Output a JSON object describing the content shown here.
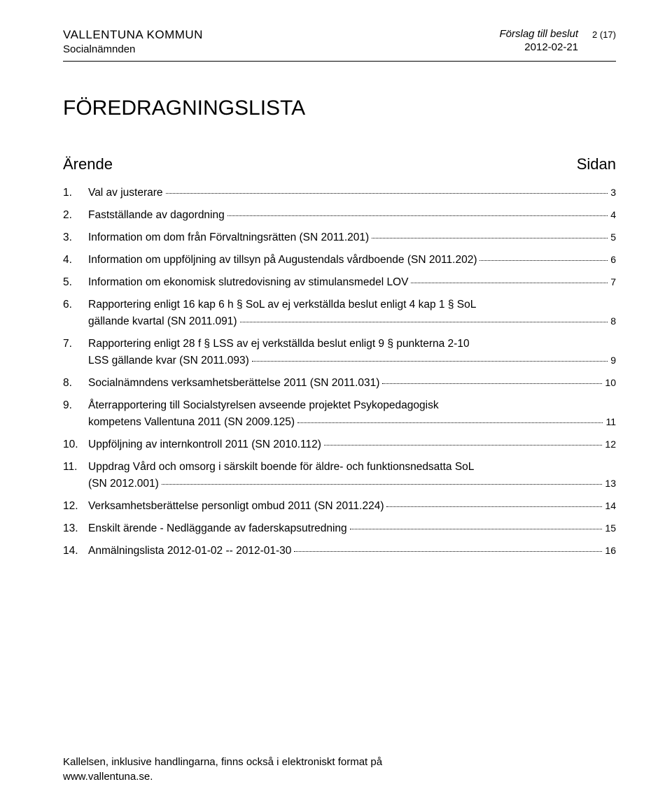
{
  "header": {
    "municipality": "VALLENTUNA KOMMUN",
    "committee": "Socialnämnden",
    "proposal": "Förslag till beslut",
    "date": "2012-02-21",
    "page_number": "2 (17)"
  },
  "title": "FÖREDRAGNINGSLISTA",
  "toc_header": {
    "left": "Ärende",
    "right": "Sidan"
  },
  "items": [
    {
      "num": "1.",
      "text": "Val av justerare",
      "page": "3",
      "multiline": false
    },
    {
      "num": "2.",
      "text": "Fastställande av dagordning",
      "page": "4",
      "multiline": false
    },
    {
      "num": "3.",
      "text": "Information om dom från Förvaltningsrätten (SN 2011.201)",
      "page": "5",
      "multiline": false
    },
    {
      "num": "4.",
      "text": "Information om uppföljning av tillsyn på Augustendals vårdboende (SN 2011.202)",
      "page": "6",
      "multiline": false
    },
    {
      "num": "5.",
      "text": "Information om ekonomisk slutredovisning av stimulansmedel LOV",
      "page": "7",
      "multiline": false
    },
    {
      "num": "6.",
      "line1": "Rapportering enligt 16 kap 6 h § SoL av ej verkställda beslut enligt 4 kap 1 § SoL",
      "line2": "gällande kvartal (SN 2011.091)",
      "page": "8",
      "multiline": true
    },
    {
      "num": "7.",
      "line1": "Rapportering enligt 28 f § LSS av ej verkställda beslut enligt 9 § punkterna 2-10",
      "line2": "LSS gällande kvar (SN 2011.093)",
      "page": "9",
      "multiline": true
    },
    {
      "num": "8.",
      "text": "Socialnämndens verksamhetsberättelse 2011 (SN 2011.031)",
      "page": "10",
      "multiline": false
    },
    {
      "num": "9.",
      "line1": "Återrapportering till Socialstyrelsen avseende projektet Psykopedagogisk",
      "line2": "kompetens Vallentuna 2011 (SN 2009.125)",
      "page": "11",
      "multiline": true
    },
    {
      "num": "10.",
      "text": "Uppföljning av internkontroll 2011 (SN 2010.112)",
      "page": "12",
      "multiline": false
    },
    {
      "num": "11.",
      "line1": "Uppdrag Vård och omsorg i särskilt boende för äldre- och funktionsnedsatta SoL",
      "line2": "(SN 2012.001)",
      "page": "13",
      "multiline": true
    },
    {
      "num": "12.",
      "text": "Verksamhetsberättelse personligt ombud 2011 (SN 2011.224)",
      "page": "14",
      "multiline": false
    },
    {
      "num": "13.",
      "text": "Enskilt ärende - Nedläggande av faderskapsutredning",
      "page": "15",
      "multiline": false
    },
    {
      "num": "14.",
      "text": "Anmälningslista 2012-01-02 -- 2012-01-30",
      "page": "16",
      "multiline": false
    }
  ],
  "footer": {
    "line1": "Kallelsen, inklusive handlingarna, finns också i elektroniskt format på",
    "line2": "www.vallentuna.se."
  }
}
